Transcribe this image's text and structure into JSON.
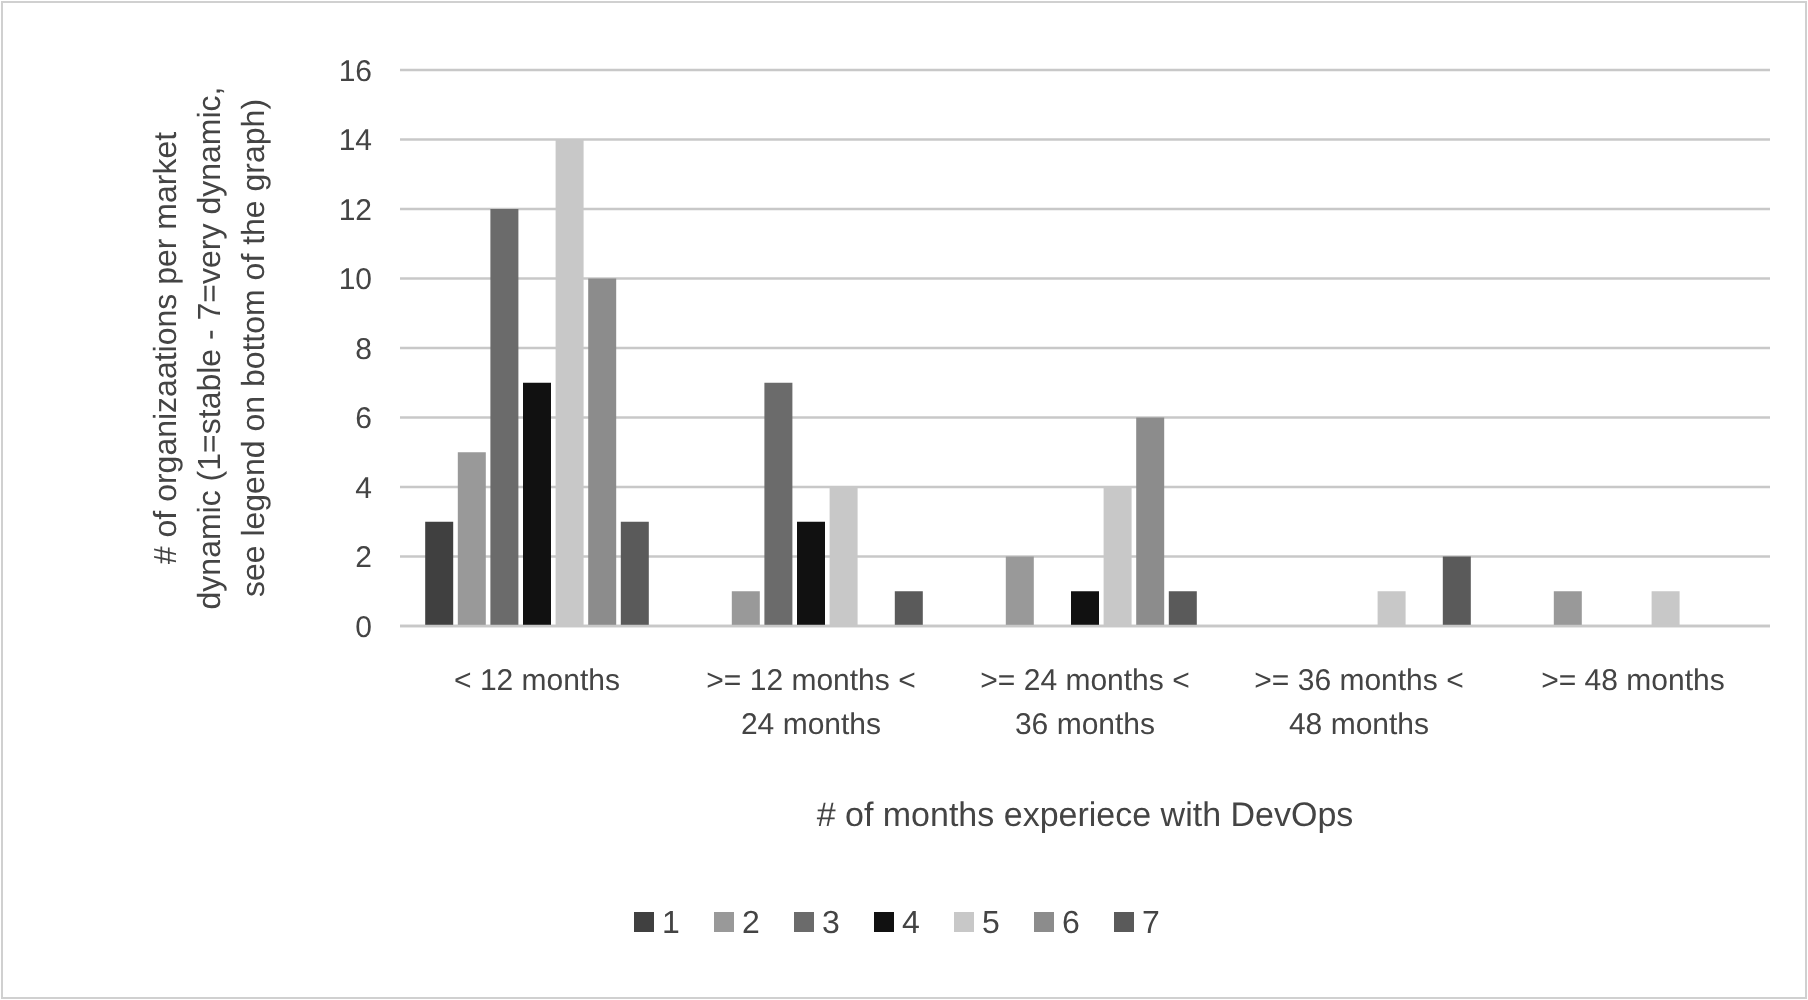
{
  "chart_data": {
    "type": "bar",
    "xlabel": "# of months experiece with DevOps",
    "ylabel": "# of organizaations per market dynamic (1=stable - 7=very dynamic, see legend on bottom of the graph)",
    "categories": [
      "< 12 months",
      ">= 12 months < 24 months",
      ">= 24 months < 36 months",
      ">= 36 months < 48 months",
      ">= 48 months"
    ],
    "series": [
      {
        "name": "1",
        "color": "#404040",
        "values": [
          3,
          0,
          0,
          0,
          0
        ]
      },
      {
        "name": "2",
        "color": "#999999",
        "values": [
          5,
          1,
          2,
          0,
          1
        ]
      },
      {
        "name": "3",
        "color": "#6b6b6b",
        "values": [
          12,
          7,
          0,
          0,
          0
        ]
      },
      {
        "name": "4",
        "color": "#111111",
        "values": [
          7,
          3,
          1,
          0,
          0
        ]
      },
      {
        "name": "5",
        "color": "#c8c8c8",
        "values": [
          14,
          4,
          4,
          1,
          1
        ]
      },
      {
        "name": "6",
        "color": "#8c8c8c",
        "values": [
          10,
          0,
          6,
          0,
          0
        ]
      },
      {
        "name": "7",
        "color": "#5a5a5a",
        "values": [
          3,
          1,
          1,
          2,
          0
        ]
      }
    ],
    "ylim": [
      0,
      16
    ],
    "yticks": [
      0,
      2,
      4,
      6,
      8,
      10,
      12,
      14,
      16
    ],
    "grid": "y",
    "legend": "bottom"
  }
}
